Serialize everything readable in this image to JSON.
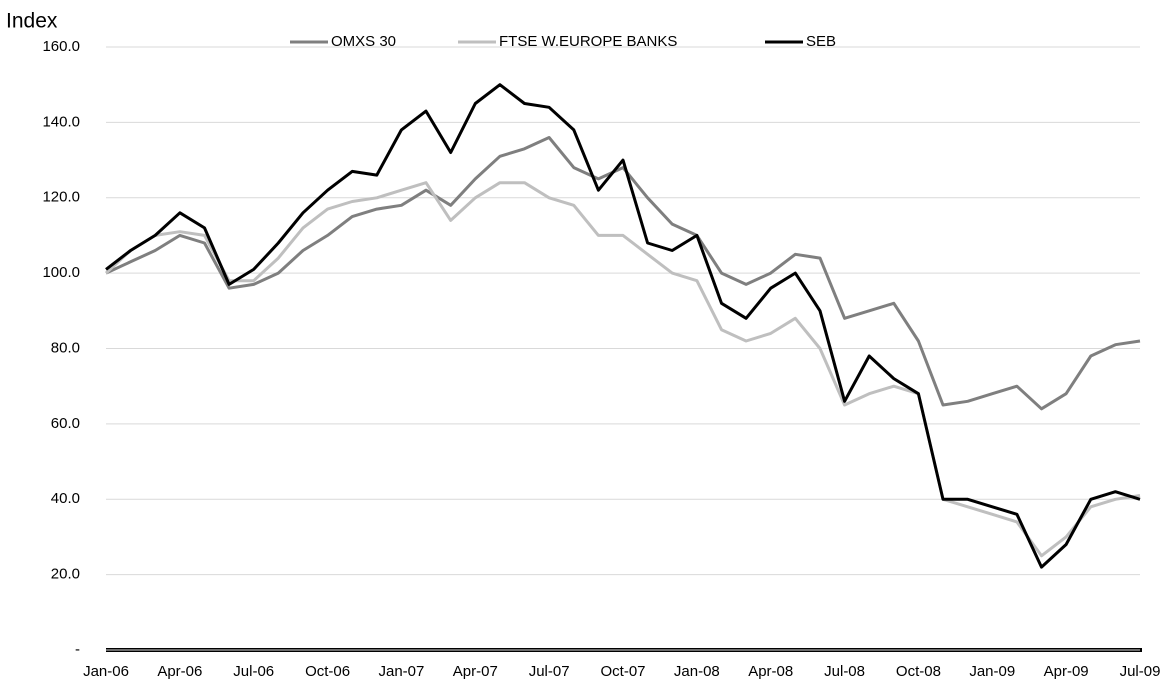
{
  "chart_data": {
    "type": "line",
    "y_label": "Index",
    "categories": [
      "Jan-06",
      null,
      null,
      "Apr-06",
      null,
      null,
      "Jul-06",
      null,
      null,
      "Oct-06",
      null,
      null,
      "Jan-07",
      null,
      null,
      "Apr-07",
      null,
      null,
      "Jul-07",
      null,
      null,
      "Oct-07",
      null,
      null,
      "Jan-08",
      null,
      null,
      "Apr-08",
      null,
      null,
      "Jul-08",
      null,
      null,
      "Oct-08",
      null,
      null,
      "Jan-09",
      null,
      null,
      "Apr-09",
      null,
      null,
      "Jul-09"
    ],
    "series": [
      {
        "name": "OMXS 30",
        "color": "#7f7f7f",
        "values": [
          100,
          103,
          106,
          110,
          108,
          96,
          97,
          100,
          106,
          110,
          115,
          117,
          118,
          122,
          118,
          125,
          131,
          133,
          136,
          128,
          125,
          128,
          120,
          113,
          110,
          100,
          97,
          100,
          105,
          104,
          88,
          90,
          92,
          82,
          65,
          66,
          68,
          70,
          64,
          68,
          78,
          81,
          82
        ]
      },
      {
        "name": "FTSE W.EUROPE BANKS",
        "color": "#bfbfbf",
        "values": [
          100,
          106,
          110,
          111,
          110,
          98,
          98,
          104,
          112,
          117,
          119,
          120,
          122,
          124,
          114,
          120,
          124,
          124,
          120,
          118,
          110,
          110,
          105,
          100,
          98,
          85,
          82,
          84,
          88,
          80,
          65,
          68,
          70,
          68,
          40,
          38,
          36,
          34,
          25,
          30,
          38,
          40,
          41
        ]
      },
      {
        "name": "SEB",
        "color": "#000000",
        "values": [
          101,
          106,
          110,
          116,
          112,
          97,
          101,
          108,
          116,
          122,
          127,
          126,
          138,
          143,
          132,
          145,
          150,
          145,
          144,
          138,
          122,
          130,
          108,
          106,
          110,
          92,
          88,
          96,
          100,
          90,
          66,
          78,
          72,
          68,
          40,
          40,
          38,
          36,
          22,
          28,
          40,
          42,
          40
        ]
      }
    ],
    "ylim": [
      0,
      160
    ],
    "yticks": [
      {
        "value": 0,
        "label": "-"
      },
      {
        "value": 20,
        "label": "20.0"
      },
      {
        "value": 40,
        "label": "40.0"
      },
      {
        "value": 60,
        "label": "60.0"
      },
      {
        "value": 80,
        "label": "80.0"
      },
      {
        "value": 100,
        "label": "100.0"
      },
      {
        "value": 120,
        "label": "120.0"
      },
      {
        "value": 140,
        "label": "140.0"
      },
      {
        "value": 160,
        "label": "160.0"
      }
    ],
    "grid": true,
    "legend": "top"
  }
}
